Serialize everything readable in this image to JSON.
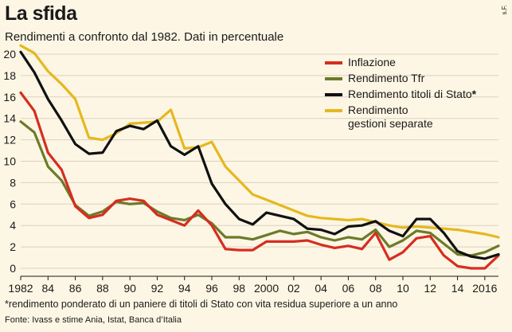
{
  "title": "La sfida",
  "subtitle": "Rendimenti a confronto dal 1982. Dati in percentuale",
  "credit": "s.F.",
  "note": "*rendimento ponderato di un paniere di titoli di Stato con vita residua superiore a un anno",
  "source": "Fonte: Ivass e stime Ania, Istat, Banca d’Italia",
  "chart_data": {
    "type": "line",
    "title": "",
    "xlabel": "",
    "ylabel": "",
    "x": [
      1982,
      1983,
      1984,
      1985,
      1986,
      1987,
      1988,
      1989,
      1990,
      1991,
      1992,
      1993,
      1994,
      1995,
      1996,
      1997,
      1998,
      1999,
      2000,
      2001,
      2002,
      2003,
      2004,
      2005,
      2006,
      2007,
      2008,
      2009,
      2010,
      2011,
      2012,
      2013,
      2014,
      2015,
      2016,
      2017
    ],
    "xlim": [
      1982,
      2017
    ],
    "ylim": [
      0,
      20
    ],
    "x_tick_values": [
      1982,
      1984,
      1986,
      1988,
      1990,
      1992,
      1994,
      1996,
      1998,
      2000,
      2002,
      2004,
      2006,
      2008,
      2010,
      2012,
      2014,
      2016
    ],
    "x_tick_labels": [
      "1982",
      "84",
      "86",
      "88",
      "90",
      "92",
      "94",
      "96",
      "98",
      "2000",
      "02",
      "04",
      "06",
      "08",
      "10",
      "12",
      "14",
      "2016"
    ],
    "y_ticks": [
      0,
      2,
      4,
      6,
      8,
      10,
      12,
      14,
      16,
      18,
      20
    ],
    "grid": "horizontal",
    "legend_position": "top-right",
    "series": [
      {
        "name": "Inflazione",
        "color": "#d62d20",
        "values": [
          16.4,
          14.7,
          10.8,
          9.2,
          5.8,
          4.7,
          5.0,
          6.3,
          6.5,
          6.3,
          5.0,
          4.5,
          4.0,
          5.4,
          4.0,
          1.8,
          1.7,
          1.7,
          2.5,
          2.5,
          2.5,
          2.6,
          2.2,
          1.9,
          2.1,
          1.8,
          3.3,
          0.8,
          1.5,
          2.8,
          3.0,
          1.2,
          0.2,
          0.0,
          0.0,
          1.2
        ]
      },
      {
        "name": "Rendimento Tfr",
        "color": "#6b7b2a",
        "values": [
          13.7,
          12.7,
          9.5,
          8.2,
          5.9,
          4.9,
          5.3,
          6.2,
          6.0,
          6.1,
          5.3,
          4.7,
          4.5,
          5.0,
          4.2,
          2.9,
          2.9,
          2.7,
          3.1,
          3.5,
          3.2,
          3.4,
          2.9,
          2.6,
          2.9,
          2.7,
          3.6,
          2.0,
          2.6,
          3.5,
          3.3,
          2.3,
          1.3,
          1.2,
          1.5,
          2.1
        ]
      },
      {
        "name": "Rendimento titoli di Stato",
        "name_suffix": "*",
        "color": "#111111",
        "values": [
          20.2,
          18.3,
          15.8,
          13.8,
          11.6,
          10.7,
          10.8,
          12.8,
          13.3,
          13.0,
          13.8,
          11.4,
          10.6,
          11.4,
          7.9,
          6.0,
          4.6,
          4.1,
          5.2,
          4.9,
          4.6,
          3.7,
          3.6,
          3.2,
          3.9,
          4.0,
          4.4,
          3.5,
          3.0,
          4.6,
          4.6,
          3.3,
          1.6,
          1.1,
          0.9,
          1.3
        ]
      },
      {
        "name": "Rendimento\ngestioni separate",
        "color": "#e6b820",
        "values": [
          20.8,
          20.1,
          18.4,
          17.2,
          15.8,
          12.2,
          12.0,
          12.6,
          13.5,
          13.6,
          13.7,
          14.8,
          11.2,
          11.3,
          11.8,
          9.5,
          8.2,
          6.9,
          6.4,
          5.9,
          5.4,
          4.9,
          4.7,
          4.6,
          4.5,
          4.6,
          4.3,
          4.0,
          3.8,
          3.9,
          3.8,
          3.7,
          3.6,
          3.4,
          3.2,
          2.9
        ]
      }
    ]
  }
}
